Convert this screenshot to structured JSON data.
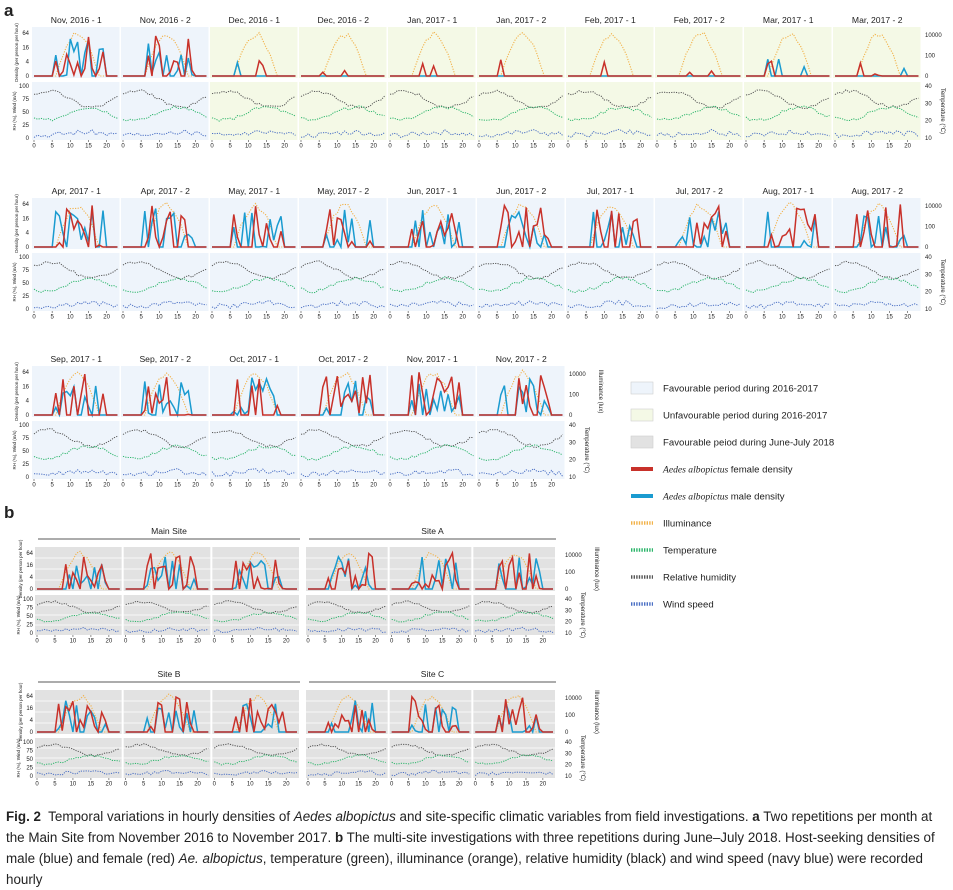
{
  "figure": {
    "panel_labels": [
      "a",
      "b"
    ],
    "site_labels": [
      "Main Site",
      "Site A",
      "Site B",
      "Site C"
    ],
    "caption": {
      "label": "Fig. 2",
      "part1": "Temporal variations in hourly densities of ",
      "species": "Aedes albopictus",
      "part2": " and site-specific climatic variables from field investigations. ",
      "a_label": "a",
      "part3": " Two repetitions per month at the Main Site from November 2016 to November 2017. ",
      "b_label": "b",
      "part4": " The multi-site investigations with three repetitions during June–July 2018. Host-seeking densities of male (blue) and female (red) ",
      "species_short": "Ae. albopictus",
      "part5": ", temperature (green), illuminance (orange), relative humidity (black) and wind speed (navy blue) were recorded hourly"
    }
  },
  "legend": {
    "items": [
      {
        "label": "Favourable period during 2016-2017",
        "kind": "bg",
        "color": "#eef4fb"
      },
      {
        "label": "Unfavourable period during 2016-2017",
        "kind": "bg",
        "color": "#f4f9e6"
      },
      {
        "label": "Favourable peiod during June-July 2018",
        "kind": "bg",
        "color": "#e2e2e2"
      },
      {
        "label": "female density",
        "prefix": "Aedes albopictus",
        "kind": "line",
        "color": "#c8312a"
      },
      {
        "label": "male density",
        "prefix": "Aedes albopictus",
        "kind": "line",
        "color": "#1a9bd0"
      },
      {
        "label": "Illuminance",
        "kind": "dot",
        "color": "#f2b24a"
      },
      {
        "label": "Temperature",
        "kind": "dot",
        "color": "#2bb56a"
      },
      {
        "label": "Relative humidity",
        "kind": "dot",
        "color": "#555555"
      },
      {
        "label": "Wind speed",
        "kind": "dot",
        "color": "#4a6fc4"
      }
    ]
  },
  "chart_data": {
    "type": "line",
    "x_ticks": [
      "0",
      "5",
      "10",
      "15",
      "20"
    ],
    "density_axis": {
      "label": "Density (per person per hour)",
      "ticks": [
        "0",
        "4",
        "16",
        "64"
      ]
    },
    "illuminance_axis": {
      "label": "Illuminance (lux)",
      "ticks": [
        "0",
        "100",
        "10000"
      ]
    },
    "rh_wind_axis": {
      "label": "RH (%), Wind (m/s)",
      "ticks": [
        "0",
        "25",
        "50",
        "75",
        "100"
      ]
    },
    "temperature_axis": {
      "label": "Temperature (°C)",
      "ticks": [
        "10",
        "20",
        "30",
        "40"
      ]
    },
    "panel_a_periods": [
      {
        "title": "Nov, 2016 - 1",
        "season": "fav"
      },
      {
        "title": "Nov, 2016 - 2",
        "season": "fav"
      },
      {
        "title": "Dec, 2016 - 1",
        "season": "unfav"
      },
      {
        "title": "Dec, 2016 - 2",
        "season": "unfav"
      },
      {
        "title": "Jan, 2017 - 1",
        "season": "unfav"
      },
      {
        "title": "Jan, 2017 - 2",
        "season": "unfav"
      },
      {
        "title": "Feb, 2017 - 1",
        "season": "unfav"
      },
      {
        "title": "Feb, 2017 - 2",
        "season": "unfav"
      },
      {
        "title": "Mar, 2017 - 1",
        "season": "unfav"
      },
      {
        "title": "Mar, 2017 - 2",
        "season": "unfav"
      },
      {
        "title": "Apr, 2017 - 1",
        "season": "fav"
      },
      {
        "title": "Apr, 2017 - 2",
        "season": "fav"
      },
      {
        "title": "May, 2017 - 1",
        "season": "fav"
      },
      {
        "title": "May, 2017 - 2",
        "season": "fav"
      },
      {
        "title": "Jun, 2017 - 1",
        "season": "fav"
      },
      {
        "title": "Jun, 2017 - 2",
        "season": "fav"
      },
      {
        "title": "Jul, 2017 - 1",
        "season": "fav"
      },
      {
        "title": "Jul, 2017 - 2",
        "season": "fav"
      },
      {
        "title": "Aug, 2017 - 1",
        "season": "fav"
      },
      {
        "title": "Aug, 2017 - 2",
        "season": "fav"
      },
      {
        "title": "Sep, 2017 - 1",
        "season": "fav"
      },
      {
        "title": "Sep, 2017 - 2",
        "season": "fav"
      },
      {
        "title": "Oct, 2017 - 1",
        "season": "fav"
      },
      {
        "title": "Oct, 2017 - 2",
        "season": "fav"
      },
      {
        "title": "Nov, 2017 - 1",
        "season": "fav"
      },
      {
        "title": "Nov, 2017 - 2",
        "season": "fav"
      }
    ],
    "series": [
      {
        "name": "Aedes albopictus female density",
        "color": "#c8312a"
      },
      {
        "name": "Aedes albopictus male density",
        "color": "#1a9bd0"
      },
      {
        "name": "Illuminance",
        "color": "#f2b24a"
      },
      {
        "name": "Temperature",
        "color": "#2bb56a"
      },
      {
        "name": "Relative humidity",
        "color": "#555555"
      },
      {
        "name": "Wind speed",
        "color": "#4a6fc4"
      }
    ]
  }
}
